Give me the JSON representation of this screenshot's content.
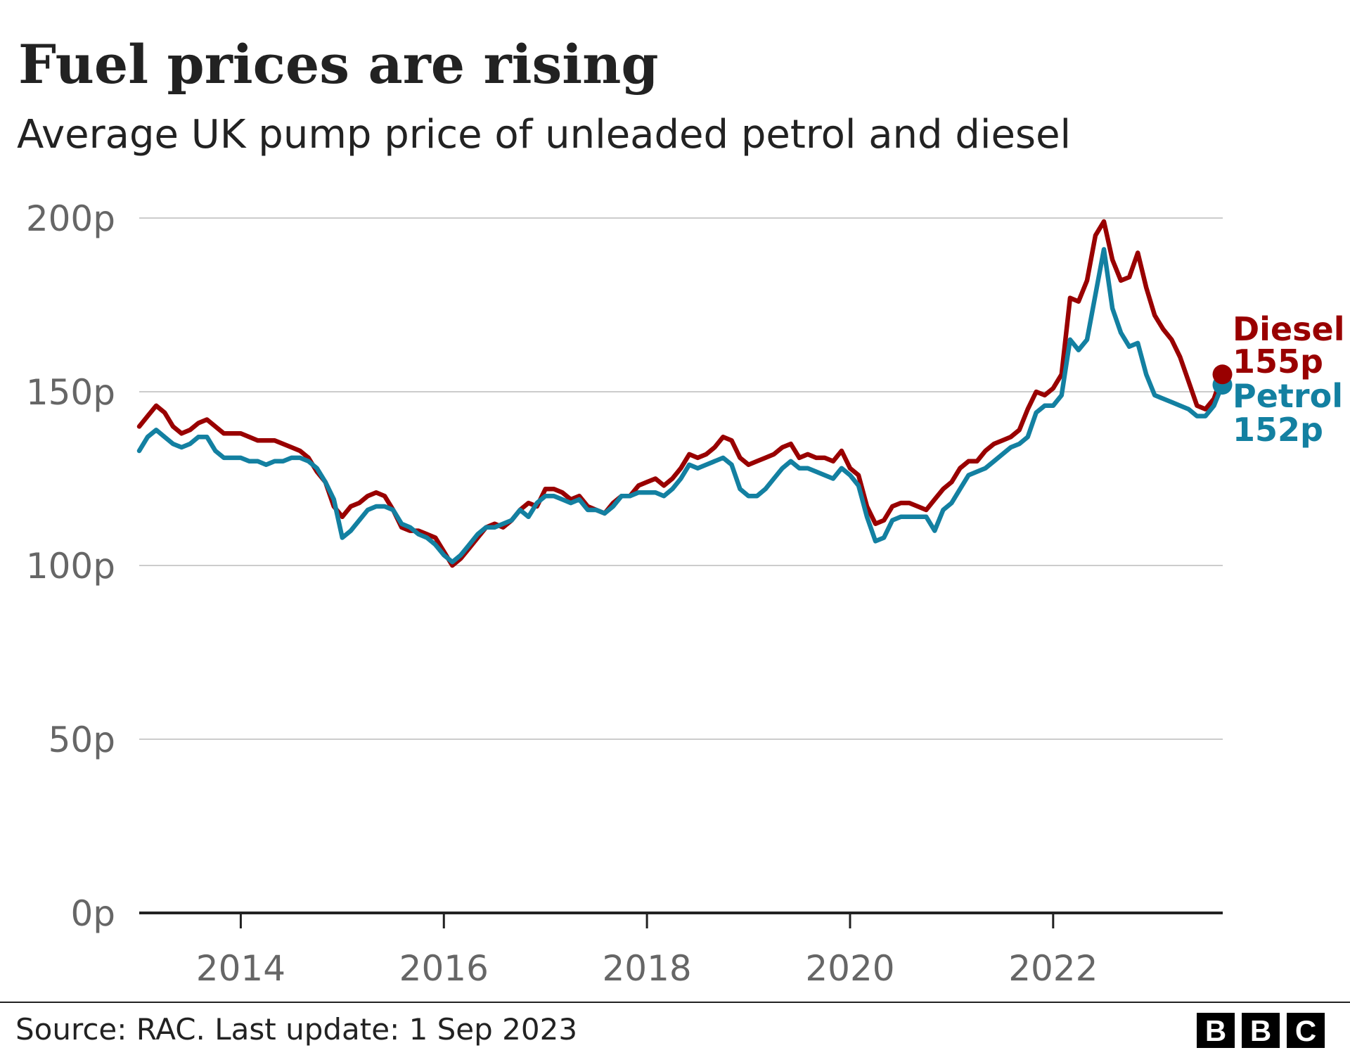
{
  "chart_data": {
    "type": "line",
    "title": "Fuel prices are rising",
    "subtitle": "Average UK pump price of unleaded petrol and diesel",
    "xlabel": "",
    "ylabel": "",
    "x_start": "2013-01",
    "x_end": "2023-09",
    "x_frequency": "monthly",
    "xlim": [
      2013.0,
      2023.67
    ],
    "ylim": [
      0,
      200
    ],
    "x_ticks": [
      2014,
      2016,
      2018,
      2020,
      2022
    ],
    "x_tick_labels": [
      "2014",
      "2016",
      "2018",
      "2020",
      "2022"
    ],
    "y_ticks": [
      0,
      50,
      100,
      150,
      200
    ],
    "y_tick_labels": [
      "0p",
      "50p",
      "100p",
      "150p",
      "200p"
    ],
    "grid": "horizontal",
    "series": [
      {
        "name": "Diesel",
        "end_label": "155p",
        "color": "#990000",
        "values": [
          140,
          143,
          146,
          144,
          140,
          138,
          139,
          141,
          142,
          140,
          138,
          138,
          138,
          137,
          136,
          136,
          136,
          135,
          134,
          133,
          131,
          127,
          124,
          117,
          114,
          117,
          118,
          120,
          121,
          120,
          116,
          111,
          110,
          110,
          109,
          108,
          104,
          100,
          102,
          105,
          108,
          111,
          112,
          111,
          113,
          116,
          118,
          117,
          122,
          122,
          121,
          119,
          120,
          117,
          116,
          115,
          118,
          120,
          120,
          123,
          124,
          125,
          123,
          125,
          128,
          132,
          131,
          132,
          134,
          137,
          136,
          131,
          129,
          130,
          131,
          132,
          134,
          135,
          131,
          132,
          131,
          131,
          130,
          133,
          128,
          126,
          117,
          112,
          113,
          117,
          118,
          118,
          117,
          116,
          119,
          122,
          124,
          128,
          130,
          130,
          133,
          135,
          136,
          137,
          139,
          145,
          150,
          149,
          151,
          155,
          177,
          176,
          182,
          195,
          199,
          188,
          182,
          183,
          190,
          180,
          172,
          168,
          165,
          160,
          153,
          146,
          145,
          148,
          155
        ]
      },
      {
        "name": "Petrol",
        "end_label": "152p",
        "color": "#1380A1",
        "values": [
          133,
          137,
          139,
          137,
          135,
          134,
          135,
          137,
          137,
          133,
          131,
          131,
          131,
          130,
          130,
          129,
          130,
          130,
          131,
          131,
          130,
          128,
          124,
          119,
          108,
          110,
          113,
          116,
          117,
          117,
          116,
          112,
          111,
          109,
          108,
          106,
          103,
          101,
          103,
          106,
          109,
          111,
          111,
          112,
          113,
          116,
          114,
          118,
          120,
          120,
          119,
          118,
          119,
          116,
          116,
          115,
          117,
          120,
          120,
          121,
          121,
          121,
          120,
          122,
          125,
          129,
          128,
          129,
          130,
          131,
          129,
          122,
          120,
          120,
          122,
          125,
          128,
          130,
          128,
          128,
          127,
          126,
          125,
          128,
          126,
          123,
          114,
          107,
          108,
          113,
          114,
          114,
          114,
          114,
          110,
          116,
          118,
          122,
          126,
          127,
          128,
          130,
          132,
          134,
          135,
          137,
          144,
          146,
          146,
          149,
          165,
          162,
          165,
          178,
          191,
          174,
          167,
          163,
          164,
          155,
          149,
          148,
          147,
          146,
          145,
          143,
          143,
          146,
          152
        ]
      }
    ],
    "source": "Source: RAC. Last update: 1 Sep 2023",
    "logo": "BBC"
  }
}
